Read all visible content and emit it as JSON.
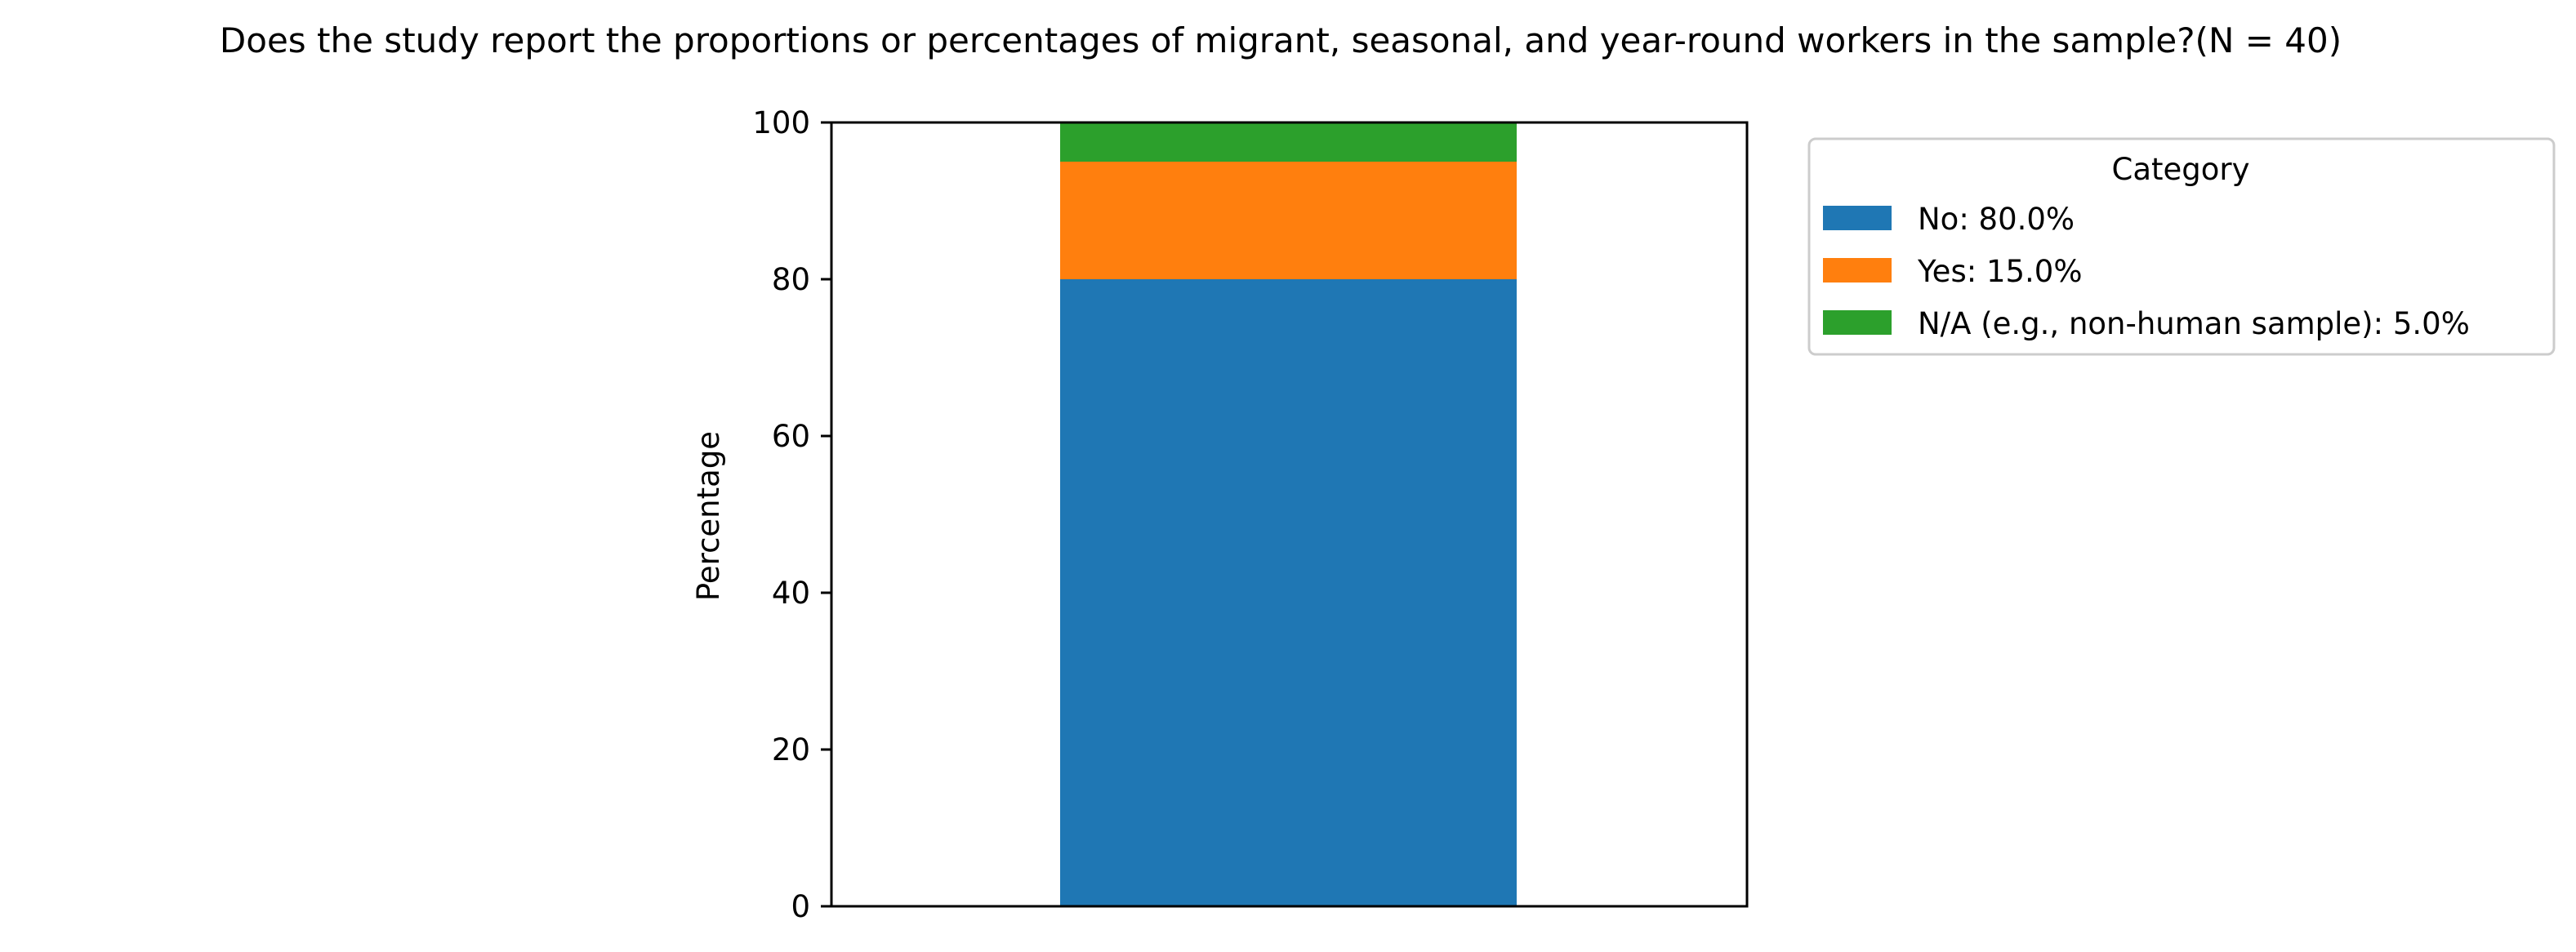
{
  "chart_data": {
    "type": "bar",
    "stacked": true,
    "title": "Does the study report the proportions or percentages of migrant, seasonal, and year-round workers in the sample?(N = 40)",
    "xlabel": "",
    "ylabel": "Percentage",
    "ylim": [
      0,
      100
    ],
    "yticks": [
      0,
      20,
      40,
      60,
      80,
      100
    ],
    "grid": false,
    "legend": {
      "title": "Category",
      "placement": "outside-top-right"
    },
    "categories": [
      ""
    ],
    "series": [
      {
        "name": "No: 80.0%",
        "values": [
          80.0
        ],
        "color": "#1f77b4"
      },
      {
        "name": "Yes: 15.0%",
        "values": [
          15.0
        ],
        "color": "#ff7f0e"
      },
      {
        "name": "N/A (e.g., non-human sample): 5.0%",
        "values": [
          5.0
        ],
        "color": "#2ca02c"
      }
    ]
  }
}
